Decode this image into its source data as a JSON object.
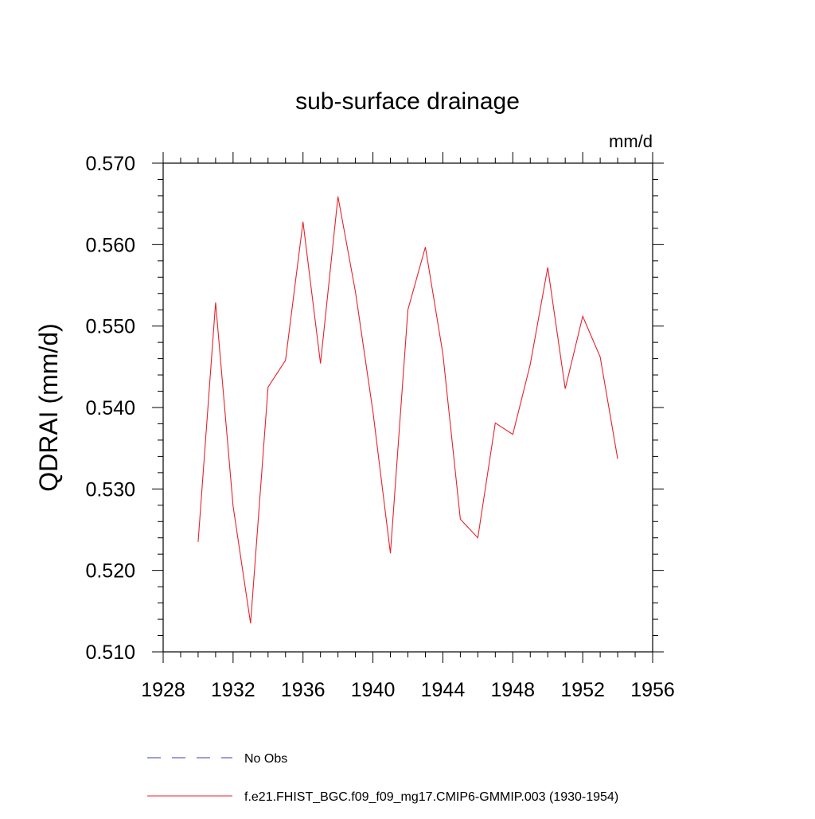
{
  "chart_data": {
    "type": "line",
    "title": "sub-surface drainage",
    "units_label": "mm/d",
    "ylabel": "QDRAI  (mm/d)",
    "xlabel": "",
    "xlim": [
      1928,
      1956
    ],
    "ylim": [
      0.51,
      0.57
    ],
    "x_ticks": [
      "1928",
      "1932",
      "1936",
      "1940",
      "1944",
      "1948",
      "1952",
      "1956"
    ],
    "y_ticks": [
      "0.510",
      "0.520",
      "0.530",
      "0.540",
      "0.550",
      "0.560",
      "0.570"
    ],
    "series": [
      {
        "name": "f.e21.FHIST_BGC.f09_f09_mg17.CMIP6-GMMIP.003 (1930-1954)",
        "color": "#e8202a",
        "x": [
          1930,
          1931,
          1932,
          1933,
          1934,
          1935,
          1936,
          1937,
          1938,
          1939,
          1940,
          1941,
          1942,
          1943,
          1944,
          1945,
          1946,
          1947,
          1948,
          1949,
          1950,
          1951,
          1952,
          1953,
          1954
        ],
        "y": [
          0.5235,
          0.5529,
          0.5279,
          0.5135,
          0.5425,
          0.5458,
          0.5628,
          0.5454,
          0.5659,
          0.5542,
          0.5395,
          0.5221,
          0.552,
          0.5597,
          0.5466,
          0.5263,
          0.524,
          0.5381,
          0.5367,
          0.5453,
          0.5572,
          0.5423,
          0.5512,
          0.5462,
          0.5337
        ]
      }
    ],
    "legend": {
      "placement": "bottom",
      "entries": [
        {
          "label": "No Obs",
          "color": "#3b3bb0",
          "style": "dashed"
        },
        {
          "label": "f.e21.FHIST_BGC.f09_f09_mg17.CMIP6-GMMIP.003 (1930-1954)",
          "color": "#e8202a",
          "style": "solid"
        }
      ]
    }
  }
}
